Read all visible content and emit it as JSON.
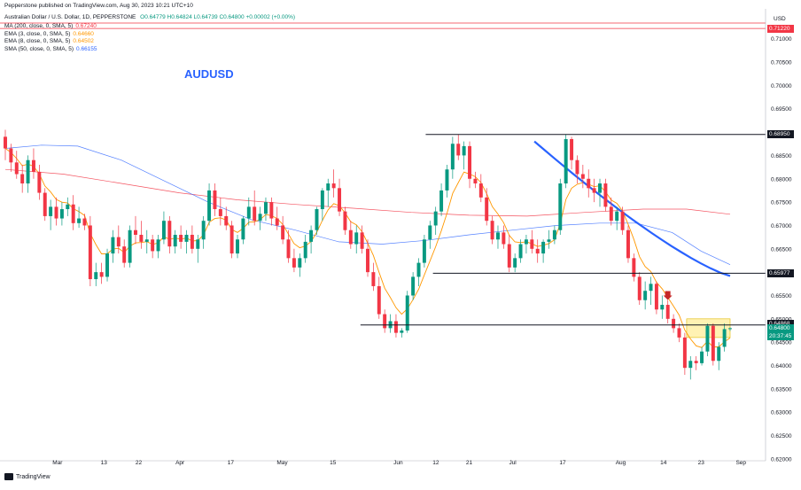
{
  "header": {
    "publisher": "Pepperstone published on TradingView.com, Aug 30, 2023 10:21 UTC+10",
    "symbol_line_prefix": "Australian Dollar / U.S. Dollar, 1D, PEPPERSTONE",
    "ohlc_text": "O0.64779 H0.64824 L0.64739 C0.64800 +0.00002 (+0.00%)"
  },
  "legend": [
    {
      "label": "MA (200, close, 0, SMA, 5)",
      "value": "0.67240",
      "color": "#f23645"
    },
    {
      "label": "EMA (3, close, 0, SMA, 5)",
      "value": "0.64660",
      "color": "#ff9800"
    },
    {
      "label": "EMA (8, close, 0, SMA, 5)",
      "value": "0.64502",
      "color": "#ff9800"
    },
    {
      "label": "SMA (50, close, 0, SMA, 5)",
      "value": "0.66155",
      "color": "#2962ff"
    }
  ],
  "title": "AUDUSD",
  "currency": "USD",
  "footer": "TradingView",
  "price_tags": [
    {
      "text": "0.71220",
      "color": "#f23645",
      "y": 0.7122
    },
    {
      "text": "0.68950",
      "color": "#131722",
      "y": 0.6895
    },
    {
      "text": "0.65977",
      "color": "#131722",
      "y": 0.65977
    },
    {
      "text": "0.64868",
      "color": "#131722",
      "y": 0.64868
    },
    {
      "text": "0.64800",
      "color": "#089981",
      "y": 0.648
    },
    {
      "text": "20:37:45",
      "color": "#089981",
      "y": 0.648
    }
  ],
  "chart_data": {
    "type": "candlestick",
    "ylim": [
      0.6196,
      0.7145
    ],
    "y_ticks": [
      0.71,
      0.705,
      0.7,
      0.695,
      0.69,
      0.685,
      0.68,
      0.675,
      0.67,
      0.665,
      0.66,
      0.655,
      0.65,
      0.645,
      0.64,
      0.635,
      0.63,
      0.625,
      0.62
    ],
    "y_tick_labels": [
      "0.71000",
      "0.70500",
      "0.70000",
      "0.69500",
      "0.69000",
      "0.68500",
      "0.68000",
      "0.67500",
      "0.67000",
      "0.66500",
      "0.66000",
      "0.65500",
      "0.65000",
      "0.64500",
      "0.64000",
      "0.63500",
      "0.63000",
      "0.62500",
      "0.62000"
    ],
    "x_ticks": [
      "Mar",
      "13",
      "22",
      "Apr",
      "17",
      "May",
      "15",
      "Jun",
      "12",
      "21",
      "Jul",
      "17",
      "Aug",
      "14",
      "23",
      "Sep"
    ],
    "candles": [
      [
        0.689,
        0.6905,
        0.684,
        0.6865
      ],
      [
        0.6865,
        0.6875,
        0.6815,
        0.6835
      ],
      [
        0.6835,
        0.686,
        0.68,
        0.681
      ],
      [
        0.681,
        0.683,
        0.677,
        0.679
      ],
      [
        0.679,
        0.685,
        0.677,
        0.684
      ],
      [
        0.684,
        0.6865,
        0.68,
        0.6815
      ],
      [
        0.6815,
        0.683,
        0.6755,
        0.677
      ],
      [
        0.677,
        0.678,
        0.671,
        0.672
      ],
      [
        0.672,
        0.6755,
        0.669,
        0.674
      ],
      [
        0.674,
        0.676,
        0.67,
        0.6715
      ],
      [
        0.6715,
        0.675,
        0.67,
        0.6735
      ],
      [
        0.6735,
        0.676,
        0.672,
        0.6745
      ],
      [
        0.6745,
        0.6765,
        0.669,
        0.6705
      ],
      [
        0.6705,
        0.674,
        0.6695,
        0.6715
      ],
      [
        0.6715,
        0.6725,
        0.669,
        0.67
      ],
      [
        0.67,
        0.672,
        0.657,
        0.6585
      ],
      [
        0.6585,
        0.662,
        0.657,
        0.66
      ],
      [
        0.66,
        0.662,
        0.6575,
        0.659
      ],
      [
        0.659,
        0.665,
        0.658,
        0.664
      ],
      [
        0.664,
        0.669,
        0.662,
        0.6675
      ],
      [
        0.6675,
        0.67,
        0.664,
        0.6655
      ],
      [
        0.6655,
        0.667,
        0.661,
        0.662
      ],
      [
        0.662,
        0.67,
        0.661,
        0.669
      ],
      [
        0.669,
        0.672,
        0.666,
        0.668
      ],
      [
        0.668,
        0.671,
        0.665,
        0.6665
      ],
      [
        0.6665,
        0.669,
        0.664,
        0.667
      ],
      [
        0.667,
        0.668,
        0.663,
        0.6645
      ],
      [
        0.6645,
        0.668,
        0.663,
        0.667
      ],
      [
        0.667,
        0.673,
        0.666,
        0.671
      ],
      [
        0.671,
        0.672,
        0.664,
        0.6655
      ],
      [
        0.6655,
        0.669,
        0.664,
        0.668
      ],
      [
        0.668,
        0.67,
        0.665,
        0.6665
      ],
      [
        0.6665,
        0.669,
        0.664,
        0.668
      ],
      [
        0.668,
        0.67,
        0.664,
        0.665
      ],
      [
        0.665,
        0.668,
        0.662,
        0.667
      ],
      [
        0.667,
        0.672,
        0.665,
        0.671
      ],
      [
        0.671,
        0.679,
        0.67,
        0.6775
      ],
      [
        0.6775,
        0.679,
        0.672,
        0.6735
      ],
      [
        0.6735,
        0.676,
        0.67,
        0.672
      ],
      [
        0.672,
        0.674,
        0.669,
        0.67
      ],
      [
        0.67,
        0.671,
        0.663,
        0.664
      ],
      [
        0.664,
        0.668,
        0.663,
        0.667
      ],
      [
        0.667,
        0.672,
        0.666,
        0.6715
      ],
      [
        0.6715,
        0.676,
        0.67,
        0.674
      ],
      [
        0.674,
        0.6775,
        0.67,
        0.671
      ],
      [
        0.671,
        0.674,
        0.669,
        0.6725
      ],
      [
        0.6725,
        0.676,
        0.671,
        0.675
      ],
      [
        0.675,
        0.676,
        0.67,
        0.6715
      ],
      [
        0.6715,
        0.674,
        0.669,
        0.67
      ],
      [
        0.67,
        0.672,
        0.666,
        0.667
      ],
      [
        0.667,
        0.669,
        0.662,
        0.663
      ],
      [
        0.663,
        0.665,
        0.66,
        0.661
      ],
      [
        0.661,
        0.664,
        0.659,
        0.663
      ],
      [
        0.663,
        0.668,
        0.662,
        0.6665
      ],
      [
        0.6665,
        0.67,
        0.664,
        0.669
      ],
      [
        0.669,
        0.674,
        0.668,
        0.6735
      ],
      [
        0.6735,
        0.678,
        0.671,
        0.6775
      ],
      [
        0.6775,
        0.68,
        0.674,
        0.679
      ],
      [
        0.679,
        0.682,
        0.676,
        0.678
      ],
      [
        0.678,
        0.68,
        0.672,
        0.673
      ],
      [
        0.673,
        0.674,
        0.668,
        0.669
      ],
      [
        0.669,
        0.671,
        0.665,
        0.666
      ],
      [
        0.666,
        0.67,
        0.664,
        0.6685
      ],
      [
        0.6685,
        0.67,
        0.664,
        0.665
      ],
      [
        0.665,
        0.667,
        0.659,
        0.66
      ],
      [
        0.66,
        0.662,
        0.656,
        0.657
      ],
      [
        0.657,
        0.659,
        0.65,
        0.651
      ],
      [
        0.651,
        0.652,
        0.647,
        0.648
      ],
      [
        0.648,
        0.651,
        0.647,
        0.6495
      ],
      [
        0.6495,
        0.651,
        0.646,
        0.647
      ],
      [
        0.647,
        0.648,
        0.646,
        0.6475
      ],
      [
        0.6475,
        0.656,
        0.647,
        0.655
      ],
      [
        0.655,
        0.66,
        0.654,
        0.659
      ],
      [
        0.659,
        0.663,
        0.657,
        0.662
      ],
      [
        0.662,
        0.668,
        0.661,
        0.667
      ],
      [
        0.667,
        0.671,
        0.665,
        0.67
      ],
      [
        0.67,
        0.674,
        0.668,
        0.673
      ],
      [
        0.673,
        0.679,
        0.672,
        0.6775
      ],
      [
        0.6775,
        0.683,
        0.676,
        0.682
      ],
      [
        0.682,
        0.689,
        0.68,
        0.6875
      ],
      [
        0.6875,
        0.6895,
        0.684,
        0.685
      ],
      [
        0.685,
        0.688,
        0.682,
        0.687
      ],
      [
        0.687,
        0.688,
        0.678,
        0.68
      ],
      [
        0.68,
        0.6815,
        0.678,
        0.679
      ],
      [
        0.679,
        0.681,
        0.675,
        0.676
      ],
      [
        0.676,
        0.678,
        0.67,
        0.671
      ],
      [
        0.671,
        0.672,
        0.666,
        0.667
      ],
      [
        0.667,
        0.67,
        0.665,
        0.6685
      ],
      [
        0.6685,
        0.67,
        0.665,
        0.666
      ],
      [
        0.666,
        0.668,
        0.66,
        0.661
      ],
      [
        0.661,
        0.664,
        0.66,
        0.663
      ],
      [
        0.663,
        0.667,
        0.662,
        0.666
      ],
      [
        0.666,
        0.668,
        0.664,
        0.667
      ],
      [
        0.667,
        0.669,
        0.664,
        0.665
      ],
      [
        0.665,
        0.667,
        0.662,
        0.664
      ],
      [
        0.664,
        0.667,
        0.662,
        0.6665
      ],
      [
        0.6665,
        0.669,
        0.665,
        0.667
      ],
      [
        0.667,
        0.67,
        0.666,
        0.669
      ],
      [
        0.669,
        0.68,
        0.668,
        0.679
      ],
      [
        0.679,
        0.6895,
        0.678,
        0.6885
      ],
      [
        0.6885,
        0.689,
        0.682,
        0.684
      ],
      [
        0.684,
        0.685,
        0.679,
        0.681
      ],
      [
        0.681,
        0.683,
        0.678,
        0.68
      ],
      [
        0.68,
        0.682,
        0.676,
        0.678
      ],
      [
        0.678,
        0.68,
        0.675,
        0.677
      ],
      [
        0.677,
        0.68,
        0.674,
        0.679
      ],
      [
        0.679,
        0.68,
        0.673,
        0.674
      ],
      [
        0.674,
        0.676,
        0.67,
        0.671
      ],
      [
        0.671,
        0.674,
        0.669,
        0.673
      ],
      [
        0.673,
        0.674,
        0.668,
        0.669
      ],
      [
        0.669,
        0.67,
        0.662,
        0.663
      ],
      [
        0.663,
        0.664,
        0.658,
        0.659
      ],
      [
        0.659,
        0.66,
        0.653,
        0.654
      ],
      [
        0.654,
        0.658,
        0.652,
        0.656
      ],
      [
        0.656,
        0.659,
        0.653,
        0.6575
      ],
      [
        0.6575,
        0.658,
        0.651,
        0.652
      ],
      [
        0.652,
        0.655,
        0.65,
        0.653
      ],
      [
        0.653,
        0.654,
        0.649,
        0.65
      ],
      [
        0.65,
        0.651,
        0.647,
        0.648
      ],
      [
        0.648,
        0.649,
        0.645,
        0.646
      ],
      [
        0.646,
        0.647,
        0.638,
        0.6395
      ],
      [
        0.6395,
        0.642,
        0.637,
        0.641
      ],
      [
        0.641,
        0.642,
        0.639,
        0.6405
      ],
      [
        0.6405,
        0.644,
        0.64,
        0.643
      ],
      [
        0.643,
        0.649,
        0.642,
        0.6485
      ],
      [
        0.6485,
        0.649,
        0.64,
        0.641
      ],
      [
        0.641,
        0.645,
        0.639,
        0.644
      ],
      [
        0.644,
        0.649,
        0.643,
        0.6478
      ],
      [
        0.6478,
        0.6482,
        0.6474,
        0.648
      ]
    ],
    "ma_200": [
      [
        0,
        0.682
      ],
      [
        0.08,
        0.681
      ],
      [
        0.16,
        0.679
      ],
      [
        0.24,
        0.677
      ],
      [
        0.32,
        0.6755
      ],
      [
        0.4,
        0.6745
      ],
      [
        0.48,
        0.6737
      ],
      [
        0.56,
        0.6728
      ],
      [
        0.64,
        0.6722
      ],
      [
        0.72,
        0.672
      ],
      [
        0.8,
        0.6728
      ],
      [
        0.88,
        0.6735
      ],
      [
        0.94,
        0.6735
      ],
      [
        1.0,
        0.6724
      ]
    ],
    "sma_50": [
      [
        0,
        0.6865
      ],
      [
        0.05,
        0.6872
      ],
      [
        0.1,
        0.687
      ],
      [
        0.16,
        0.684
      ],
      [
        0.22,
        0.6795
      ],
      [
        0.28,
        0.675
      ],
      [
        0.34,
        0.6712
      ],
      [
        0.4,
        0.669
      ],
      [
        0.46,
        0.6665
      ],
      [
        0.52,
        0.666
      ],
      [
        0.58,
        0.6668
      ],
      [
        0.64,
        0.668
      ],
      [
        0.7,
        0.669
      ],
      [
        0.76,
        0.67
      ],
      [
        0.82,
        0.6705
      ],
      [
        0.87,
        0.6705
      ],
      [
        0.92,
        0.6685
      ],
      [
        0.96,
        0.6645
      ],
      [
        1.0,
        0.6616
      ]
    ],
    "ema_fast": "computed",
    "trendline": {
      "x0": 0.73,
      "y0": 0.688,
      "x1": 1.0,
      "y1": 0.6592,
      "color": "#2962ff"
    },
    "hlines": [
      {
        "y": 0.6895,
        "from": 0.58,
        "to": 1.0
      },
      {
        "y": 0.65977,
        "from": 0.59,
        "to": 1.0
      },
      {
        "y": 0.64868,
        "from": 0.49,
        "to": 1.0
      }
    ],
    "zone": {
      "from": 0.94,
      "to": 1.0,
      "y_low": 0.646,
      "y_high": 0.65,
      "color": "#fff2b3",
      "border": "#e0b800"
    }
  },
  "colors": {
    "up": "#089981",
    "down": "#f23645",
    "ema": "#ff9800",
    "sma": "#2962ff",
    "ma200": "#f23645"
  }
}
